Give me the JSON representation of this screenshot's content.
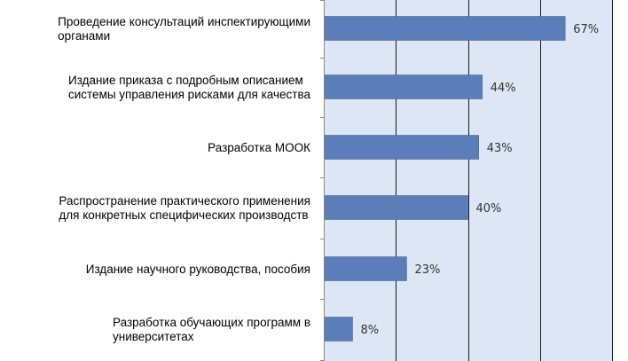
{
  "chart_data": {
    "type": "bar",
    "orientation": "horizontal",
    "categories": [
      [
        "Проведение консультаций инспектирующими",
        "органами"
      ],
      [
        "Издание приказа с подробным описанием",
        "системы управления рисками для качества"
      ],
      [
        "Разработка МООК"
      ],
      [
        "Распространение практического применения",
        "для конкретных специфических производств"
      ],
      [
        "Издание научного руководства, пособия"
      ],
      [
        "Разработка обучающих программ в",
        "университетах"
      ]
    ],
    "values": [
      67,
      44,
      43,
      40,
      23,
      8
    ],
    "value_labels": [
      "67%",
      "44%",
      "43%",
      "40%",
      "23%",
      "8%"
    ],
    "xlim": [
      0,
      80
    ],
    "grid": true,
    "title": "",
    "xlabel": "",
    "ylabel": ""
  },
  "colors": {
    "bar": "#5B7DB8",
    "plot_background": "#DCE6F5",
    "gridline": "#1a1a1a"
  }
}
